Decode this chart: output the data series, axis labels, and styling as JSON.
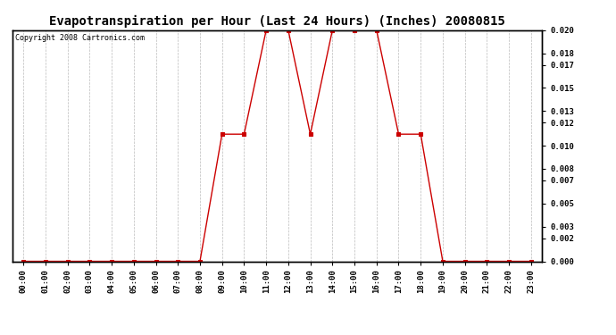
{
  "title": "Evapotranspiration per Hour (Last 24 Hours) (Inches) 20080815",
  "copyright": "Copyright 2008 Cartronics.com",
  "hours": [
    "00:00",
    "01:00",
    "02:00",
    "03:00",
    "04:00",
    "05:00",
    "06:00",
    "07:00",
    "08:00",
    "09:00",
    "10:00",
    "11:00",
    "12:00",
    "13:00",
    "14:00",
    "15:00",
    "16:00",
    "17:00",
    "18:00",
    "19:00",
    "20:00",
    "21:00",
    "22:00",
    "23:00"
  ],
  "values": [
    0.0,
    0.0,
    0.0,
    0.0,
    0.0,
    0.0,
    0.0,
    0.0,
    0.0,
    0.011,
    0.011,
    0.02,
    0.02,
    0.011,
    0.02,
    0.02,
    0.02,
    0.011,
    0.011,
    0.0,
    0.0,
    0.0,
    0.0,
    0.0
  ],
  "line_color": "#cc0000",
  "marker": "s",
  "marker_size": 2.5,
  "marker_color": "#cc0000",
  "bg_color": "#ffffff",
  "grid_color": "#bbbbbb",
  "ylim": [
    0.0,
    0.02
  ],
  "yticks": [
    0.0,
    0.002,
    0.003,
    0.005,
    0.007,
    0.008,
    0.01,
    0.012,
    0.013,
    0.015,
    0.017,
    0.018,
    0.02
  ],
  "title_fontsize": 10,
  "copyright_fontsize": 6,
  "tick_fontsize": 6.5,
  "linewidth": 1.0
}
